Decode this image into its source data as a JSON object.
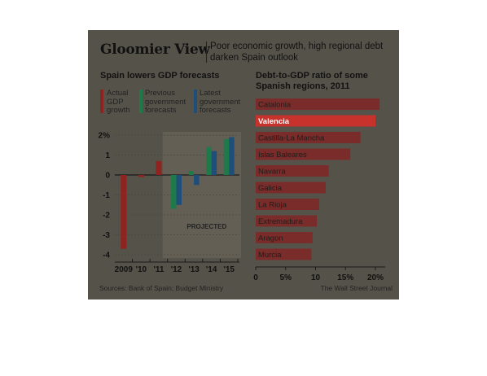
{
  "header": {
    "title": "Gloomier View",
    "subtitle": "Poor economic growth, high regional debt darken Spain outlook"
  },
  "left_chart_title": "Spain lowers GDP forecasts",
  "right_chart_title": "Debt-to-GDP ratio of some Spanish regions, 2011",
  "legend": [
    {
      "label": "Actual GDP growth",
      "color": "#8f2320"
    },
    {
      "label": "Previous government forecasts",
      "color": "#1f7a4a"
    },
    {
      "label": "Latest government forecasts",
      "color": "#1f4e7a"
    }
  ],
  "projected_label": "PROJECTED",
  "footer": {
    "source": "Sources: Bank of Spain; Budget Ministry",
    "credit": "The Wall Street Journal"
  },
  "colors": {
    "panel": "#55524a",
    "projected_band": "#645f55",
    "actual": "#8f2320",
    "previous": "#1f7a4a",
    "latest": "#1f4e7a",
    "region_bar": "#7a2c2a",
    "highlight_text": "#ffffff"
  },
  "chart_data": [
    {
      "type": "bar",
      "title": "Spain lowers GDP forecasts",
      "categories": [
        "2009",
        "'10",
        "'11",
        "'12",
        "'13",
        "'14",
        "'15"
      ],
      "ylim": [
        -4,
        2
      ],
      "yticks": [
        "2%",
        "1",
        "0",
        "-1",
        "-2",
        "-3",
        "-4"
      ],
      "projected_from": "'12",
      "series": [
        {
          "name": "Actual GDP growth",
          "values": [
            -3.7,
            -0.1,
            0.7,
            null,
            null,
            null,
            null
          ]
        },
        {
          "name": "Previous government forecasts",
          "values": [
            null,
            null,
            null,
            -1.7,
            0.2,
            1.4,
            1.8
          ]
        },
        {
          "name": "Latest government forecasts",
          "values": [
            null,
            null,
            null,
            -1.5,
            -0.5,
            1.2,
            1.9
          ]
        }
      ]
    },
    {
      "type": "bar",
      "orientation": "horizontal",
      "title": "Debt-to-GDP ratio of some Spanish regions, 2011",
      "categories": [
        "Catalonia",
        "Valencia",
        "Castilla-La Mancha",
        "Islas Baleares",
        "Navarra",
        "Galicia",
        "La Rioja",
        "Extremadura",
        "Aragon",
        "Murcia"
      ],
      "values": [
        20.7,
        20.0,
        17.5,
        15.8,
        12.2,
        11.7,
        10.6,
        10.2,
        9.5,
        9.3
      ],
      "xlim": [
        0,
        20
      ],
      "xticks": [
        "0",
        "5%",
        "10",
        "15%",
        "20%"
      ],
      "highlight": "Valencia"
    }
  ]
}
